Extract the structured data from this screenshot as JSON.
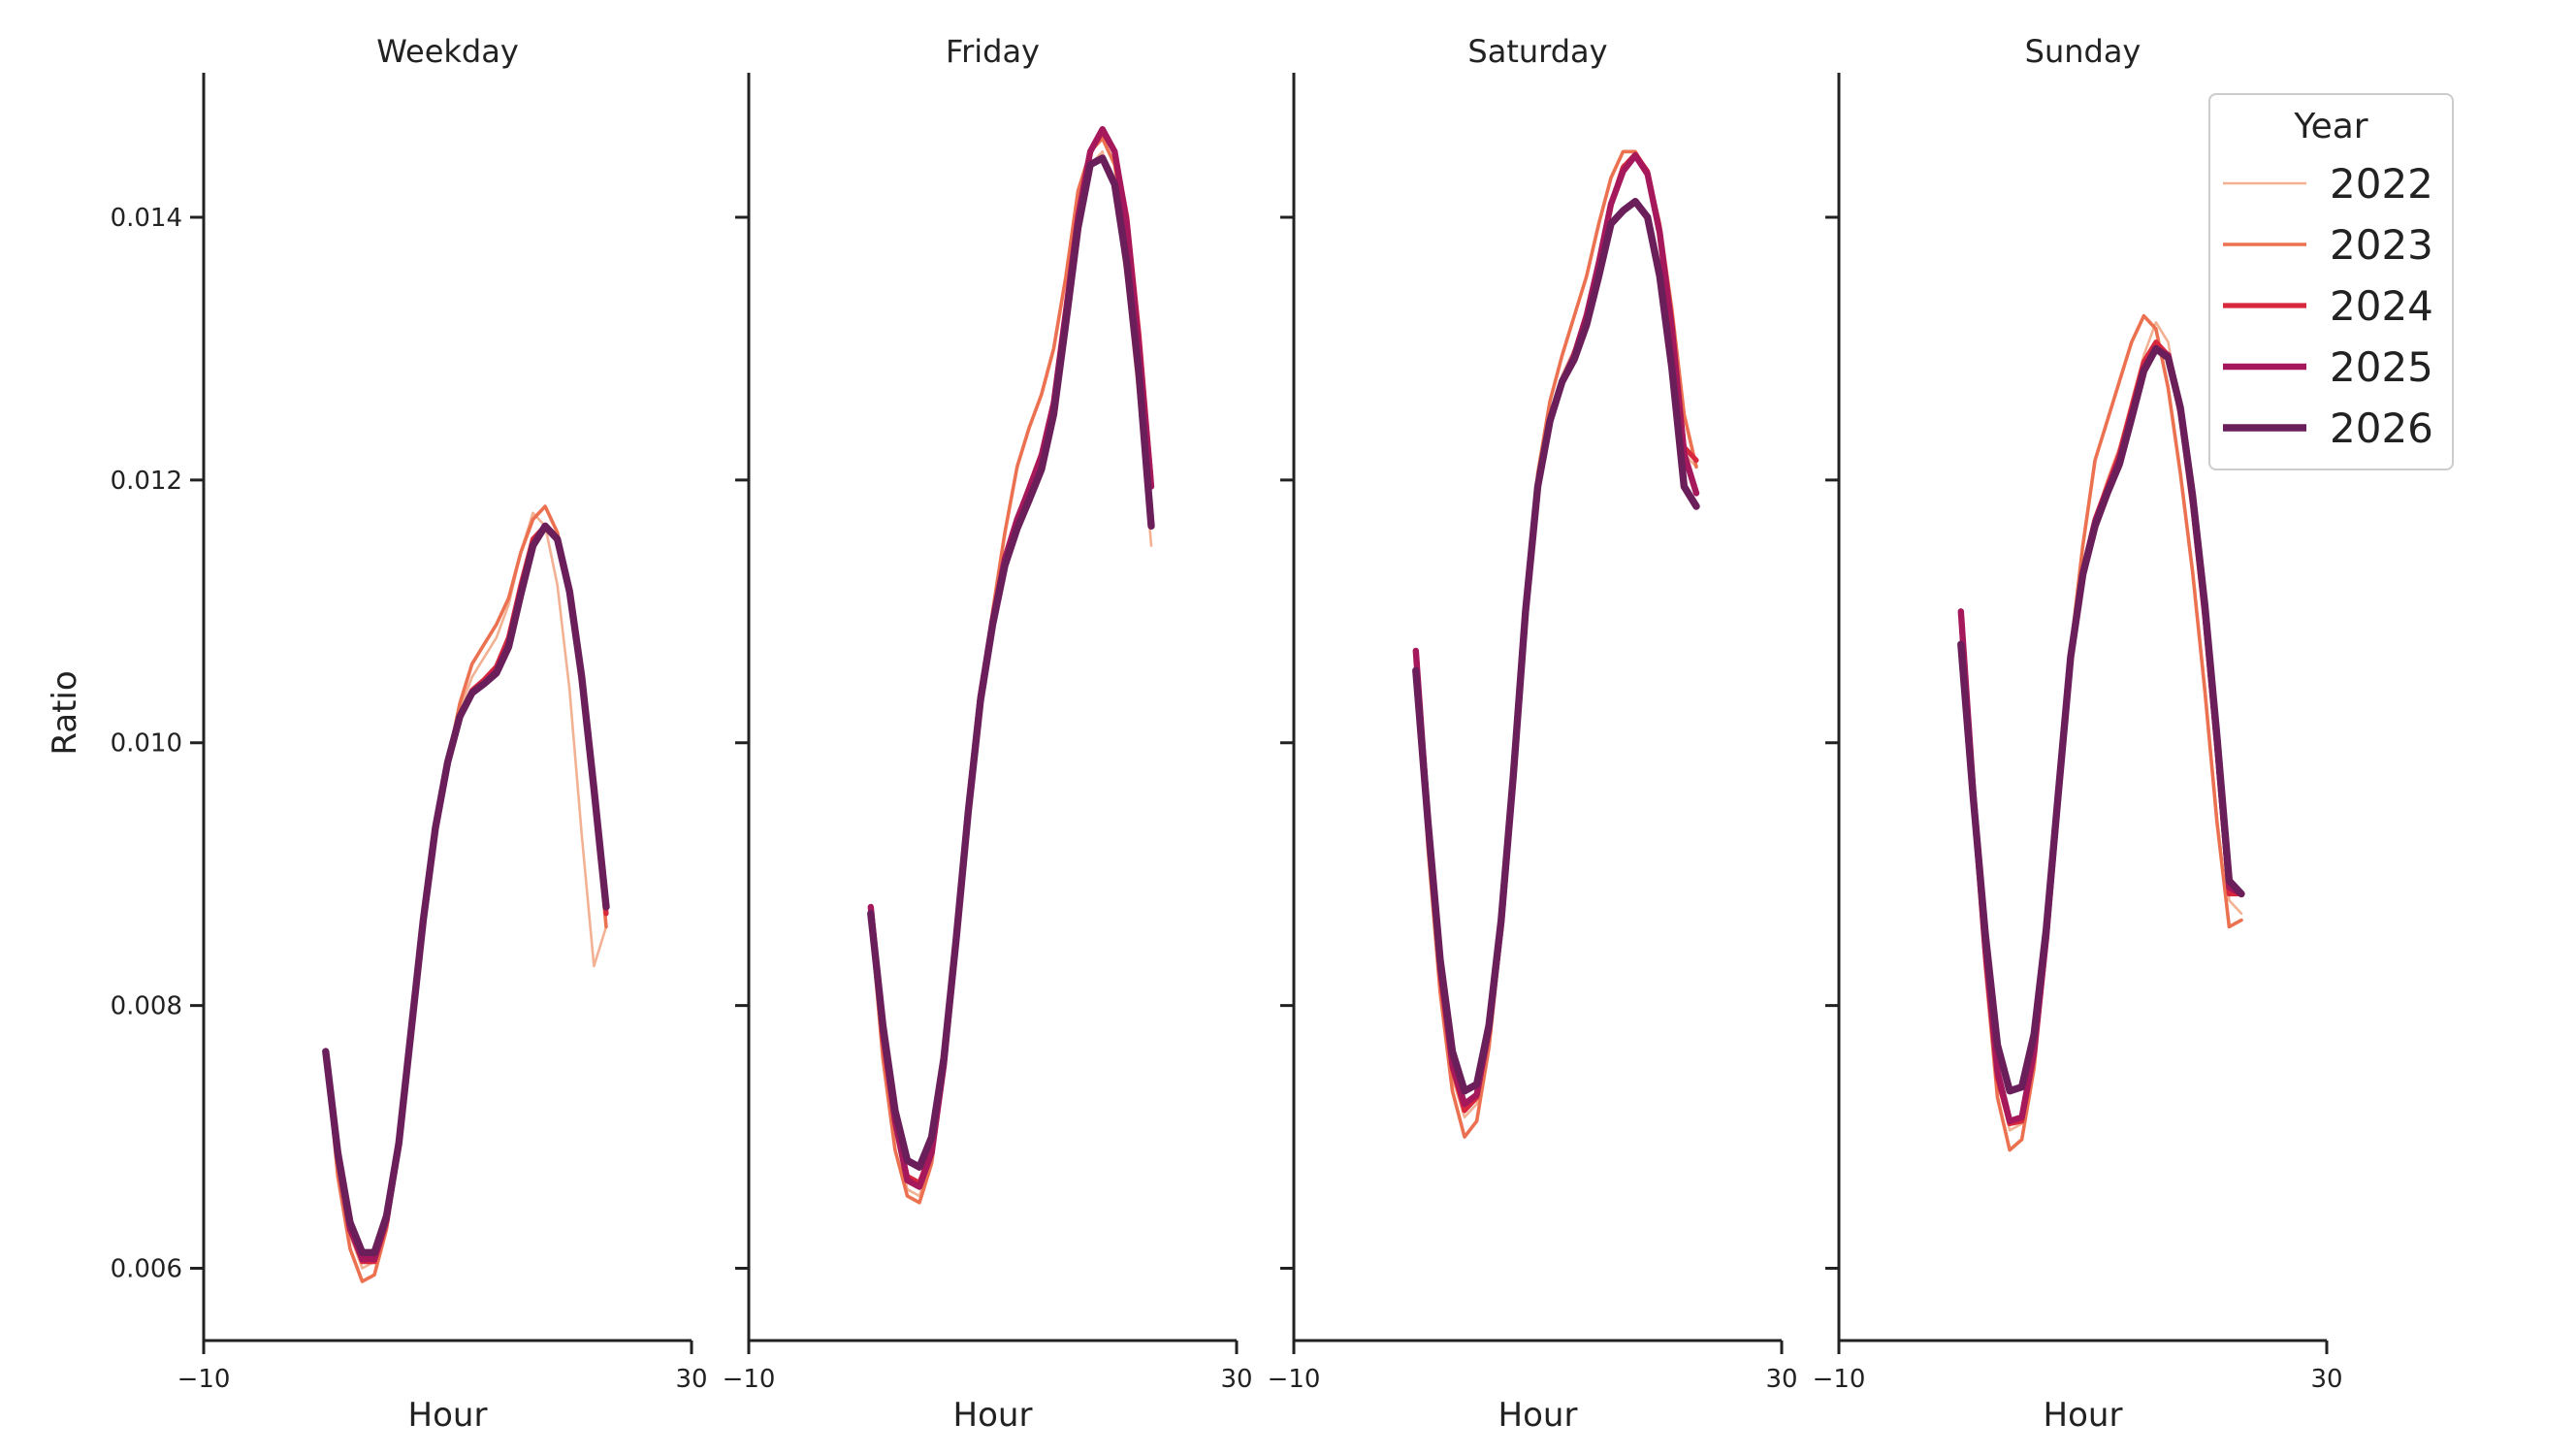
{
  "chart_data": {
    "type": "line",
    "ylabel": "Ratio",
    "xlabel": "Hour",
    "xlim": [
      -10,
      30
    ],
    "ylim": [
      0.00545,
      0.0151
    ],
    "xticks": [
      -10,
      30
    ],
    "xtick_labels": [
      "−10",
      "30"
    ],
    "yticks": [
      0.006,
      0.008,
      0.01,
      0.012,
      0.014
    ],
    "ytick_labels": [
      "0.006",
      "0.008",
      "0.010",
      "0.012",
      "0.014"
    ],
    "grid": false,
    "legend": {
      "title": "Year",
      "placement": "top-right",
      "entries": [
        {
          "label": "2022",
          "color": "#f3b193"
        },
        {
          "label": "2023",
          "color": "#ec7150"
        },
        {
          "label": "2024",
          "color": "#d8283d"
        },
        {
          "label": "2025",
          "color": "#a5185c"
        },
        {
          "label": "2026",
          "color": "#6b1f5a"
        }
      ]
    },
    "panels": [
      {
        "title": "Weekday",
        "x": [
          0,
          1,
          2,
          3,
          4,
          5,
          6,
          7,
          8,
          9,
          10,
          11,
          12,
          13,
          14,
          15,
          16,
          17,
          18,
          19,
          20,
          21,
          22,
          23
        ],
        "series": [
          {
            "name": "2022",
            "values": [
              0.0076,
              0.0068,
              0.00625,
              0.006,
              0.00605,
              0.00635,
              0.007,
              0.0079,
              0.0087,
              0.00935,
              0.00985,
              0.01025,
              0.0105,
              0.01065,
              0.0108,
              0.01105,
              0.01145,
              0.01175,
              0.01165,
              0.0112,
              0.0104,
              0.0093,
              0.0083,
              0.0086
            ]
          },
          {
            "name": "2023",
            "values": [
              0.00765,
              0.0067,
              0.00615,
              0.0059,
              0.00595,
              0.0063,
              0.0069,
              0.0078,
              0.0086,
              0.0093,
              0.00985,
              0.0103,
              0.0106,
              0.01075,
              0.0109,
              0.0111,
              0.01145,
              0.0117,
              0.0118,
              0.0116,
              0.0111,
              0.0104,
              0.0096,
              0.0086
            ]
          },
          {
            "name": "2024",
            "values": [
              0.00765,
              0.00685,
              0.0063,
              0.00605,
              0.00605,
              0.00635,
              0.00695,
              0.0078,
              0.00865,
              0.00935,
              0.00985,
              0.0102,
              0.0104,
              0.01048,
              0.01058,
              0.0108,
              0.0112,
              0.01155,
              0.01165,
              0.01155,
              0.01115,
              0.0105,
              0.0096,
              0.0087
            ]
          },
          {
            "name": "2025",
            "values": [
              0.00765,
              0.00685,
              0.0063,
              0.00607,
              0.00607,
              0.00637,
              0.00695,
              0.0078,
              0.00865,
              0.00935,
              0.00985,
              0.0102,
              0.01038,
              0.01045,
              0.01055,
              0.01075,
              0.01115,
              0.0115,
              0.01165,
              0.01155,
              0.01115,
              0.0105,
              0.00965,
              0.00875
            ]
          },
          {
            "name": "2026",
            "values": [
              0.00765,
              0.00688,
              0.00635,
              0.00612,
              0.00612,
              0.0064,
              0.00695,
              0.0078,
              0.00865,
              0.00935,
              0.00985,
              0.0102,
              0.01038,
              0.01045,
              0.01053,
              0.01073,
              0.01113,
              0.0115,
              0.01165,
              0.01155,
              0.01115,
              0.0105,
              0.00965,
              0.00875
            ]
          }
        ]
      },
      {
        "title": "Friday",
        "x": [
          0,
          1,
          2,
          3,
          4,
          5,
          6,
          7,
          8,
          9,
          10,
          11,
          12,
          13,
          14,
          15,
          16,
          17,
          18,
          19,
          20,
          21,
          22,
          23
        ],
        "series": [
          {
            "name": "2022",
            "values": [
              0.0087,
              0.0078,
              0.00705,
              0.0066,
              0.00655,
              0.00685,
              0.0075,
              0.0085,
              0.0095,
              0.01035,
              0.0109,
              0.01135,
              0.01165,
              0.0119,
              0.01215,
              0.01255,
              0.01325,
              0.01395,
              0.0144,
              0.0145,
              0.0142,
              0.0135,
              0.0126,
              0.0115
            ]
          },
          {
            "name": "2023",
            "values": [
              0.00865,
              0.0076,
              0.0069,
              0.00655,
              0.0065,
              0.0068,
              0.0075,
              0.0085,
              0.0095,
              0.01035,
              0.011,
              0.0116,
              0.0121,
              0.0124,
              0.01265,
              0.013,
              0.01355,
              0.0142,
              0.0145,
              0.0146,
              0.0144,
              0.0138,
              0.0129,
              0.0118
            ]
          },
          {
            "name": "2024",
            "values": [
              0.0087,
              0.00775,
              0.0071,
              0.0067,
              0.00665,
              0.0069,
              0.00755,
              0.0085,
              0.0095,
              0.01035,
              0.01095,
              0.0114,
              0.0117,
              0.01195,
              0.0122,
              0.0126,
              0.0133,
              0.014,
              0.0145,
              0.01465,
              0.0145,
              0.014,
              0.0131,
              0.012
            ]
          },
          {
            "name": "2025",
            "values": [
              0.00875,
              0.0078,
              0.00712,
              0.00667,
              0.00662,
              0.00688,
              0.00755,
              0.0085,
              0.0095,
              0.01035,
              0.01093,
              0.0114,
              0.0117,
              0.01193,
              0.01218,
              0.01258,
              0.01328,
              0.014,
              0.0145,
              0.01467,
              0.0145,
              0.01395,
              0.013,
              0.01195
            ]
          },
          {
            "name": "2026",
            "values": [
              0.0087,
              0.00785,
              0.0072,
              0.00682,
              0.00677,
              0.007,
              0.0076,
              0.0085,
              0.00948,
              0.01032,
              0.0109,
              0.01135,
              0.01163,
              0.01185,
              0.01208,
              0.0125,
              0.0132,
              0.01392,
              0.0144,
              0.01445,
              0.01425,
              0.01365,
              0.0128,
              0.01165
            ]
          }
        ]
      },
      {
        "title": "Saturday",
        "x": [
          0,
          1,
          2,
          3,
          4,
          5,
          6,
          7,
          8,
          9,
          10,
          11,
          12,
          13,
          14,
          15,
          16,
          17,
          18,
          19,
          20,
          21,
          22,
          23
        ],
        "series": [
          {
            "name": "2022",
            "values": [
              0.0106,
              0.0093,
              0.0082,
              0.00745,
              0.00715,
              0.00725,
              0.00775,
              0.0086,
              0.00975,
              0.01105,
              0.012,
              0.0125,
              0.0128,
              0.013,
              0.0133,
              0.0137,
              0.0141,
              0.0144,
              0.01445,
              0.0143,
              0.01385,
              0.0131,
              0.0122,
              0.0121
            ]
          },
          {
            "name": "2023",
            "values": [
              0.01065,
              0.0092,
              0.0081,
              0.00735,
              0.007,
              0.00712,
              0.00768,
              0.00855,
              0.0097,
              0.011,
              0.01205,
              0.0126,
              0.01295,
              0.01325,
              0.01355,
              0.01395,
              0.0143,
              0.0145,
              0.0145,
              0.01435,
              0.01395,
              0.0133,
              0.0125,
              0.0121
            ]
          },
          {
            "name": "2024",
            "values": [
              0.0107,
              0.00935,
              0.00825,
              0.00752,
              0.0072,
              0.0073,
              0.0078,
              0.00862,
              0.00975,
              0.011,
              0.01195,
              0.01245,
              0.01275,
              0.01295,
              0.01325,
              0.01365,
              0.0141,
              0.01438,
              0.01448,
              0.01435,
              0.0139,
              0.0132,
              0.01225,
              0.01215
            ]
          },
          {
            "name": "2025",
            "values": [
              0.0107,
              0.0094,
              0.0083,
              0.00755,
              0.00725,
              0.00732,
              0.00782,
              0.00862,
              0.00975,
              0.011,
              0.01195,
              0.01245,
              0.01275,
              0.01295,
              0.01325,
              0.01365,
              0.0141,
              0.01435,
              0.01447,
              0.01433,
              0.01388,
              0.01315,
              0.0122,
              0.0119
            ]
          },
          {
            "name": "2026",
            "values": [
              0.01055,
              0.0094,
              0.00835,
              0.00765,
              0.00735,
              0.0074,
              0.00785,
              0.00865,
              0.00975,
              0.011,
              0.01195,
              0.01245,
              0.01275,
              0.01292,
              0.01318,
              0.01355,
              0.01395,
              0.01405,
              0.01412,
              0.014,
              0.01355,
              0.01285,
              0.01195,
              0.0118
            ]
          }
        ]
      },
      {
        "title": "Sunday",
        "x": [
          0,
          1,
          2,
          3,
          4,
          5,
          6,
          7,
          8,
          9,
          10,
          11,
          12,
          13,
          14,
          15,
          16,
          17,
          18,
          19,
          20,
          21,
          22,
          23
        ],
        "series": [
          {
            "name": "2022",
            "values": [
              0.0109,
              0.0096,
              0.0084,
              0.00745,
              0.00705,
              0.0071,
              0.0076,
              0.0085,
              0.0096,
              0.0106,
              0.01125,
              0.0117,
              0.012,
              0.01225,
              0.0126,
              0.01295,
              0.0132,
              0.01305,
              0.0125,
              0.0118,
              0.0109,
              0.0099,
              0.0088,
              0.0087
            ]
          },
          {
            "name": "2023",
            "values": [
              0.0109,
              0.0095,
              0.0083,
              0.0073,
              0.0069,
              0.00698,
              0.00752,
              0.00845,
              0.0096,
              0.0107,
              0.0115,
              0.01215,
              0.01245,
              0.01275,
              0.01305,
              0.01325,
              0.01315,
              0.0127,
              0.01205,
              0.0113,
              0.0104,
              0.0094,
              0.0086,
              0.00865
            ]
          },
          {
            "name": "2024",
            "values": [
              0.011,
              0.0096,
              0.0084,
              0.00745,
              0.0071,
              0.00712,
              0.00762,
              0.0085,
              0.0096,
              0.01065,
              0.0113,
              0.0117,
              0.01195,
              0.0122,
              0.01255,
              0.0129,
              0.01305,
              0.01295,
              0.0125,
              0.0118,
              0.01095,
              0.00995,
              0.00885,
              0.00885
            ]
          },
          {
            "name": "2025",
            "values": [
              0.011,
              0.00965,
              0.00845,
              0.0075,
              0.00712,
              0.00715,
              0.00765,
              0.00852,
              0.00962,
              0.01065,
              0.0113,
              0.01168,
              0.01192,
              0.01215,
              0.0125,
              0.01285,
              0.013,
              0.01295,
              0.01255,
              0.01185,
              0.011,
              0.01,
              0.0089,
              0.00885
            ]
          },
          {
            "name": "2026",
            "values": [
              0.01075,
              0.0096,
              0.00855,
              0.0077,
              0.00735,
              0.00738,
              0.00778,
              0.00858,
              0.00962,
              0.01065,
              0.01128,
              0.01165,
              0.0119,
              0.01212,
              0.01247,
              0.01283,
              0.013,
              0.01293,
              0.01255,
              0.01188,
              0.01105,
              0.01005,
              0.00895,
              0.00885
            ]
          }
        ]
      }
    ]
  }
}
